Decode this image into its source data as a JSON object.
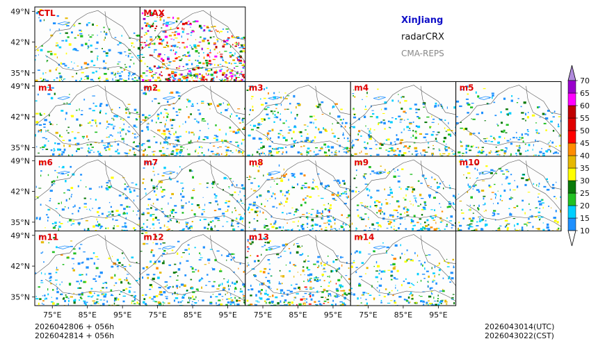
{
  "titles": {
    "region": "XinJiang",
    "variable": "radarCRX",
    "model": "CMA-REPS"
  },
  "footer": {
    "init_line1": "2026042806  +  056h",
    "init_line2": "2026042814  +  056h",
    "valid_utc": "2026043014(UTC)",
    "valid_cst": "2026043022(CST)"
  },
  "chart_data": {
    "type": "heatmap",
    "description_variable": "radarCRX",
    "panels": [
      {
        "label": "CTL",
        "intensity": 0.35
      },
      {
        "label": "MAX",
        "intensity": 1.0
      },
      {
        "label": "m1",
        "intensity": 0.35
      },
      {
        "label": "m2",
        "intensity": 0.45
      },
      {
        "label": "m3",
        "intensity": 0.4
      },
      {
        "label": "m4",
        "intensity": 0.4
      },
      {
        "label": "m5",
        "intensity": 0.3
      },
      {
        "label": "m6",
        "intensity": 0.25
      },
      {
        "label": "m7",
        "intensity": 0.35
      },
      {
        "label": "m8",
        "intensity": 0.45
      },
      {
        "label": "m9",
        "intensity": 0.4
      },
      {
        "label": "m10",
        "intensity": 0.35
      },
      {
        "label": "m11",
        "intensity": 0.35
      },
      {
        "label": "m12",
        "intensity": 0.4
      },
      {
        "label": "m13",
        "intensity": 0.5
      },
      {
        "label": "m14",
        "intensity": 0.35
      }
    ],
    "lat_ticks": [
      "49°N",
      "42°N",
      "35°N"
    ],
    "lat_values": [
      49,
      42,
      35
    ],
    "lon_ticks": [
      "75°E",
      "85°E",
      "95°E"
    ],
    "lon_values": [
      75,
      85,
      95
    ],
    "lon_range": [
      70,
      100
    ],
    "lat_range": [
      33,
      50
    ],
    "colorbar": {
      "levels": [
        "10",
        "15",
        "20",
        "25",
        "30",
        "35",
        "40",
        "45",
        "50",
        "55",
        "60",
        "65",
        "70"
      ],
      "colors": [
        "#1e90ff",
        "#00cfff",
        "#22c022",
        "#0a7a0a",
        "#ffff00",
        "#e6b800",
        "#ff8c00",
        "#ff0000",
        "#e00000",
        "#c00000",
        "#ff00ff",
        "#9900cc"
      ],
      "extend_high_color": "#b08adc",
      "extend_low_color": "#ffffff"
    }
  }
}
